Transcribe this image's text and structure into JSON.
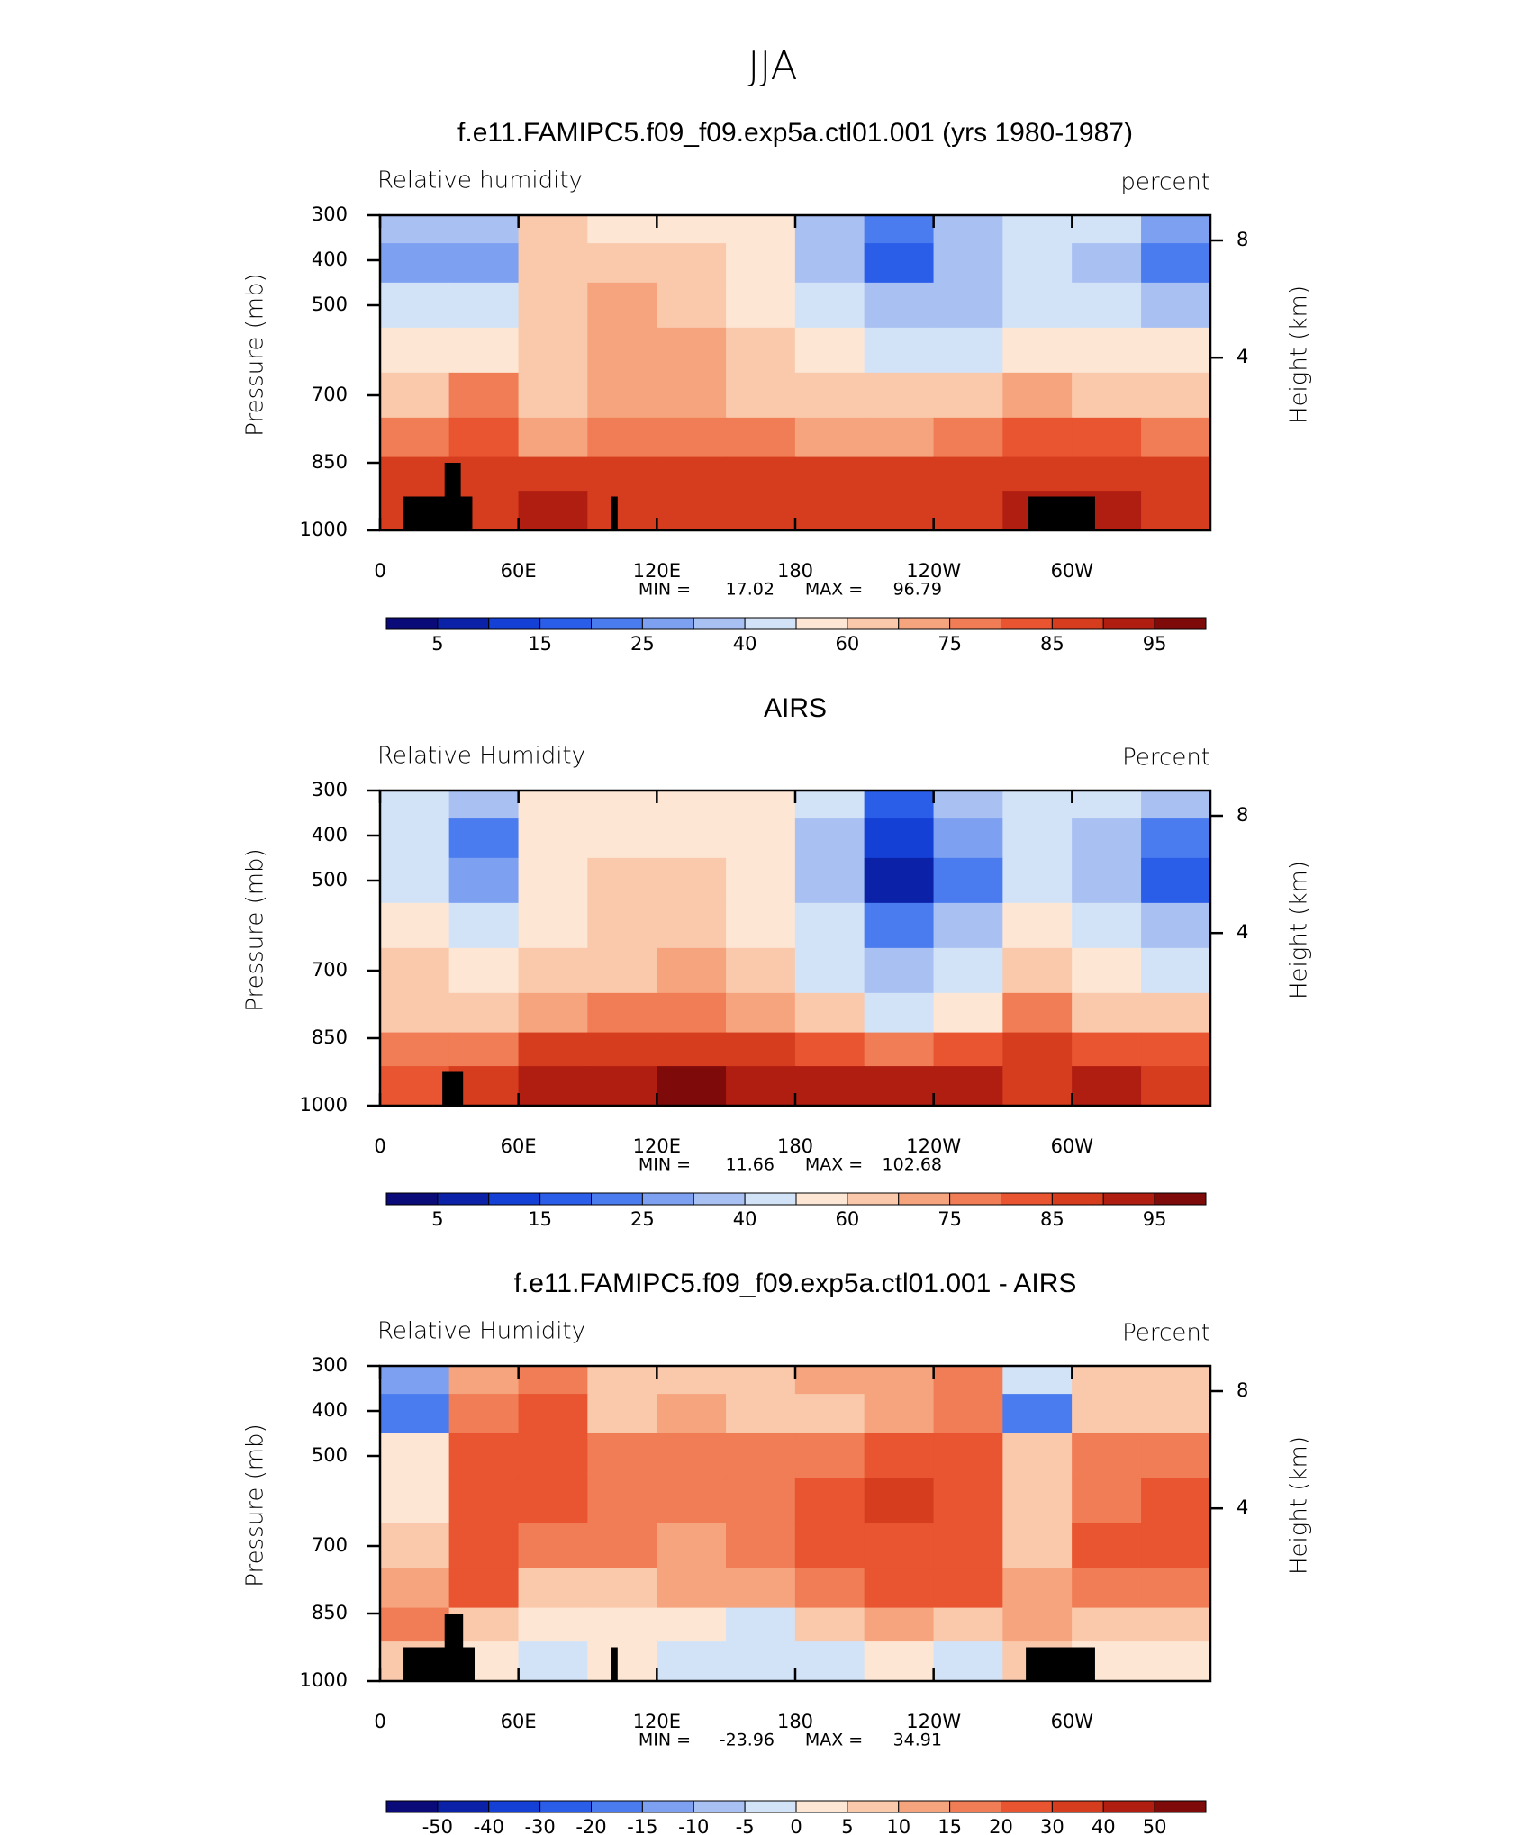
{
  "title": "JJA",
  "chart_data": [
    {
      "type": "heatmap",
      "title": "f.e11.FAMIPC5.f09_f09.exp5a.ctl01.001 (yrs 1980-1987)",
      "left_label": "Relative humidity",
      "right_label": "percent",
      "ylabel": "Pressure (mb)",
      "y2label": "Height (km)",
      "xlim": [
        0,
        360
      ],
      "xticks": [
        0,
        {
          "value": 60,
          "label": "60E"
        },
        {
          "value": 120,
          "label": "120E"
        },
        180,
        {
          "value": 240,
          "label": "120W"
        },
        {
          "value": 300,
          "label": "60W"
        }
      ],
      "ylim": [
        1000,
        300
      ],
      "yticks": [
        300,
        400,
        500,
        700,
        850,
        1000
      ],
      "y2scale": "standard_atmosphere",
      "y2ticks": [
        8,
        4
      ],
      "min_label": "MIN =",
      "min": 17.02,
      "max_label": "MAX =",
      "max": 96.79,
      "levels": [
        5,
        10,
        15,
        20,
        25,
        30,
        40,
        50,
        60,
        70,
        75,
        80,
        85,
        90,
        95
      ],
      "cbar_ticks": [
        5,
        15,
        25,
        40,
        60,
        75,
        85,
        95
      ],
      "colors": [
        "#0a0a78",
        "#0b22a8",
        "#1540d6",
        "#2a5de8",
        "#4a7cf0",
        "#7ea0f0",
        "#a9c1f2",
        "#d2e3f8",
        "#fde6d4",
        "#fac9ac",
        "#f6a47e",
        "#f07d55",
        "#e85530",
        "#d63c1e",
        "#b01e12",
        "#7f0a0a"
      ],
      "lon": [
        15,
        45,
        75,
        105,
        135,
        165,
        195,
        225,
        255,
        285,
        315,
        345
      ],
      "pressure": [
        325,
        400,
        500,
        600,
        700,
        800,
        875,
        950
      ],
      "z": [
        [
          30,
          35,
          60,
          55,
          55,
          50,
          35,
          20,
          30,
          45,
          40,
          25
        ],
        [
          28,
          25,
          65,
          65,
          65,
          55,
          35,
          18,
          35,
          45,
          30,
          22
        ],
        [
          40,
          45,
          65,
          70,
          68,
          55,
          40,
          30,
          35,
          45,
          40,
          35
        ],
        [
          50,
          55,
          65,
          70,
          70,
          60,
          50,
          45,
          45,
          50,
          50,
          50
        ],
        [
          60,
          75,
          65,
          70,
          72,
          65,
          60,
          60,
          60,
          70,
          65,
          65
        ],
        [
          75,
          80,
          72,
          75,
          78,
          75,
          72,
          72,
          75,
          80,
          80,
          78
        ],
        [
          85,
          88,
          85,
          88,
          88,
          85,
          85,
          85,
          85,
          88,
          88,
          85
        ],
        [
          85,
          85,
          90,
          88,
          88,
          88,
          87,
          88,
          88,
          90,
          90,
          88
        ]
      ]
    },
    {
      "type": "heatmap",
      "title": "AIRS",
      "left_label": "Relative Humidity",
      "right_label": "Percent",
      "ylabel": "Pressure (mb)",
      "y2label": "Height (km)",
      "xlim": [
        0,
        360
      ],
      "xticks": [
        0,
        {
          "value": 60,
          "label": "60E"
        },
        {
          "value": 120,
          "label": "120E"
        },
        180,
        {
          "value": 240,
          "label": "120W"
        },
        {
          "value": 300,
          "label": "60W"
        }
      ],
      "ylim": [
        1000,
        300
      ],
      "yticks": [
        300,
        400,
        500,
        700,
        850,
        1000
      ],
      "y2scale": "standard_atmosphere",
      "y2ticks": [
        8,
        4
      ],
      "min_label": "MIN =",
      "min": 11.66,
      "max_label": "MAX =",
      "max": 102.68,
      "levels": [
        5,
        10,
        15,
        20,
        25,
        30,
        40,
        50,
        60,
        70,
        75,
        80,
        85,
        90,
        95
      ],
      "cbar_ticks": [
        5,
        15,
        25,
        40,
        60,
        75,
        85,
        95
      ],
      "colors": [
        "#0a0a78",
        "#0b22a8",
        "#1540d6",
        "#2a5de8",
        "#4a7cf0",
        "#7ea0f0",
        "#a9c1f2",
        "#d2e3f8",
        "#fde6d4",
        "#fac9ac",
        "#f6a47e",
        "#f07d55",
        "#e85530",
        "#d63c1e",
        "#b01e12",
        "#7f0a0a"
      ],
      "lon": [
        15,
        45,
        75,
        105,
        135,
        165,
        195,
        225,
        255,
        285,
        315,
        345
      ],
      "pressure": [
        325,
        400,
        500,
        600,
        700,
        800,
        875,
        950
      ],
      "z": [
        [
          45,
          30,
          55,
          55,
          58,
          55,
          40,
          15,
          30,
          45,
          40,
          30
        ],
        [
          45,
          20,
          55,
          55,
          58,
          55,
          35,
          10,
          25,
          45,
          30,
          20
        ],
        [
          40,
          25,
          55,
          60,
          60,
          55,
          35,
          8,
          20,
          45,
          30,
          15
        ],
        [
          55,
          40,
          55,
          60,
          62,
          58,
          40,
          20,
          35,
          55,
          40,
          30
        ],
        [
          60,
          55,
          60,
          65,
          70,
          65,
          45,
          30,
          40,
          65,
          50,
          45
        ],
        [
          65,
          65,
          72,
          75,
          75,
          70,
          60,
          45,
          55,
          75,
          65,
          65
        ],
        [
          75,
          75,
          85,
          85,
          88,
          85,
          80,
          78,
          80,
          85,
          82,
          80
        ],
        [
          80,
          85,
          90,
          92,
          95,
          92,
          90,
          90,
          92,
          85,
          90,
          88
        ]
      ]
    },
    {
      "type": "heatmap",
      "title": "f.e11.FAMIPC5.f09_f09.exp5a.ctl01.001 - AIRS",
      "left_label": "Relative Humidity",
      "right_label": "Percent",
      "ylabel": "Pressure (mb)",
      "y2label": "Height (km)",
      "xlim": [
        0,
        360
      ],
      "xticks": [
        0,
        {
          "value": 60,
          "label": "60E"
        },
        {
          "value": 120,
          "label": "120E"
        },
        180,
        {
          "value": 240,
          "label": "120W"
        },
        {
          "value": 300,
          "label": "60W"
        }
      ],
      "ylim": [
        1000,
        300
      ],
      "yticks": [
        300,
        400,
        500,
        700,
        850,
        1000
      ],
      "y2scale": "standard_atmosphere",
      "y2ticks": [
        8,
        4
      ],
      "min_label": "MIN =",
      "min": -23.96,
      "max_label": "MAX =",
      "max": 34.91,
      "levels": [
        -50,
        -40,
        -30,
        -20,
        -15,
        -10,
        -5,
        0,
        5,
        10,
        15,
        20,
        30,
        40,
        50
      ],
      "cbar_ticks": [
        -50,
        -40,
        -30,
        -20,
        -15,
        -10,
        -5,
        0,
        5,
        10,
        15,
        20,
        30,
        40,
        50
      ],
      "colors": [
        "#0a0a78",
        "#0b22a8",
        "#1540d6",
        "#2a5de8",
        "#4a7cf0",
        "#7ea0f0",
        "#a9c1f2",
        "#d2e3f8",
        "#fde6d4",
        "#fac9ac",
        "#f6a47e",
        "#f07d55",
        "#e85530",
        "#d63c1e",
        "#b01e12",
        "#7f0a0a"
      ],
      "lon": [
        15,
        45,
        75,
        105,
        135,
        165,
        195,
        225,
        255,
        285,
        315,
        345
      ],
      "pressure": [
        325,
        400,
        500,
        600,
        700,
        800,
        875,
        950
      ],
      "z": [
        [
          -15,
          10,
          15,
          5,
          5,
          5,
          10,
          10,
          15,
          -5,
          5,
          5
        ],
        [
          -20,
          15,
          20,
          5,
          10,
          5,
          5,
          10,
          15,
          -20,
          5,
          5
        ],
        [
          0,
          20,
          20,
          15,
          15,
          15,
          15,
          25,
          20,
          5,
          15,
          15
        ],
        [
          0,
          20,
          20,
          15,
          15,
          15,
          20,
          30,
          20,
          5,
          15,
          20
        ],
        [
          5,
          25,
          15,
          15,
          10,
          15,
          20,
          25,
          25,
          5,
          20,
          20
        ],
        [
          10,
          20,
          5,
          5,
          10,
          10,
          15,
          25,
          25,
          10,
          15,
          15
        ],
        [
          15,
          5,
          0,
          0,
          0,
          -5,
          5,
          10,
          5,
          10,
          5,
          5
        ],
        [
          5,
          0,
          -5,
          0,
          -5,
          -5,
          -5,
          0,
          -5,
          5,
          0,
          0
        ]
      ]
    }
  ]
}
